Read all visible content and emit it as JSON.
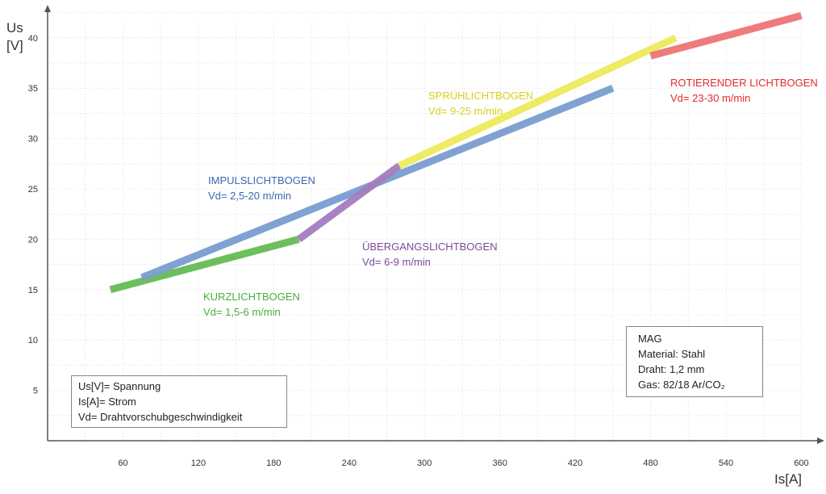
{
  "chart_data": {
    "type": "line",
    "x_axis": {
      "label": "Is[A]",
      "ticks": [
        60,
        120,
        180,
        240,
        300,
        360,
        420,
        480,
        540,
        600
      ],
      "range": [
        0,
        620
      ]
    },
    "y_axis": {
      "label_line1": "Us",
      "label_line2": "[V]",
      "ticks": [
        5,
        10,
        15,
        20,
        25,
        30,
        35,
        40
      ],
      "range": [
        0,
        44
      ]
    },
    "grid": true,
    "series": [
      {
        "name": "KURZLICHTBOGEN",
        "detail": "Vd= 1,5-6 m/min",
        "color": "#66bb55",
        "points": [
          [
            50,
            15
          ],
          [
            200,
            20
          ]
        ]
      },
      {
        "name": "IMPULSLICHTBOGEN",
        "detail": "Vd= 2,5-20 m/min",
        "color": "#7a9ed0",
        "points": [
          [
            75,
            16.2
          ],
          [
            450,
            35
          ]
        ]
      },
      {
        "name": "ÜBERGANGSLICHTBOGEN",
        "detail": "Vd= 6-9 m/min",
        "color": "#a57cc0",
        "points": [
          [
            200,
            20
          ],
          [
            280,
            27.3
          ]
        ]
      },
      {
        "name": "SPRÜHLICHTBOGEN",
        "detail": "Vd= 9-25 m/min",
        "color": "#eeea5c",
        "points": [
          [
            280,
            27.3
          ],
          [
            500,
            40
          ]
        ]
      },
      {
        "name": "ROTIERENDER LICHTBOGEN",
        "detail": "Vd= 23-30 m/min",
        "color": "#ee7675",
        "points": [
          [
            480,
            38.2
          ],
          [
            600,
            42.2
          ]
        ]
      }
    ],
    "label_colors": {
      "KURZLICHTBOGEN": "#4aad3f",
      "IMPULSLICHTBOGEN": "#3a68b0",
      "ÜBERGANGSLICHTBOGEN": "#7b4a9c",
      "SPRÜHLICHTBOGEN": "#d8d21e",
      "ROTIERENDER LICHTBOGEN": "#e42a2a"
    }
  },
  "legend": {
    "lines": [
      "Us[V]= Spannung",
      "Is[A]= Strom",
      "Vd= Drahtvorschubgeschwindigkeit"
    ]
  },
  "spec": {
    "lines": [
      "MAG",
      "Material: Stahl",
      "Draht: 1,2 mm",
      "Gas: 82/18 Ar/CO₂"
    ]
  }
}
